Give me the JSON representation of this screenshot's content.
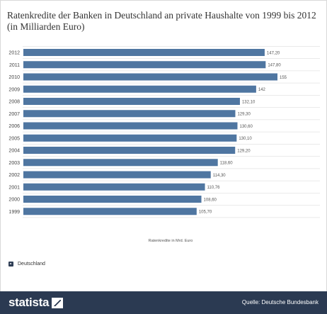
{
  "title": "Ratenkredite der Banken in Deutschland an private Haushalte von 1999 bis 2012 (in Milliarden Euro)",
  "legend": {
    "label": "Deutschland",
    "icon": "play-icon"
  },
  "footer": {
    "brand": "statista",
    "source": "Quelle: Deutsche Bundesbank"
  },
  "colors": {
    "bar": "#4f76a1",
    "grid": "#e3e3e3",
    "footer": "#2b3a52"
  },
  "chart_data": {
    "type": "bar",
    "orientation": "horizontal",
    "categories": [
      "2012",
      "2011",
      "2010",
      "2009",
      "2008",
      "2007",
      "2006",
      "2005",
      "2004",
      "2003",
      "2002",
      "2001",
      "2000",
      "1999"
    ],
    "values": [
      147.2,
      147.8,
      155,
      142,
      132.1,
      129.3,
      130.6,
      130.1,
      129.2,
      118.6,
      114.3,
      110.76,
      108.6,
      105.7
    ],
    "value_labels": [
      "147,20",
      "147,80",
      "155",
      "142",
      "132,10",
      "129,30",
      "130,60",
      "130,10",
      "129,20",
      "118,60",
      "114,30",
      "110,76",
      "108,60",
      "105,70"
    ],
    "series": [
      {
        "name": "Deutschland"
      }
    ],
    "xlabel": "Ratenkredite in Mrd. Euro",
    "ylabel": "",
    "xlim": [
      0,
      155
    ],
    "grid": true
  }
}
